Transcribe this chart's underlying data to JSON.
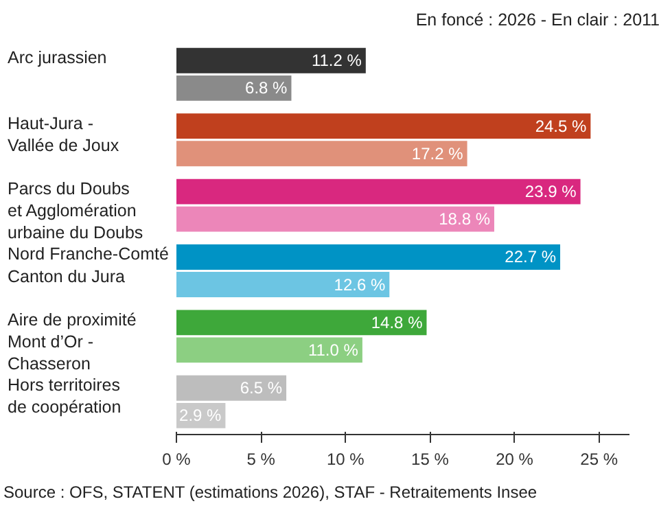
{
  "chart_data": {
    "type": "bar",
    "orientation": "horizontal",
    "title": "En foncé : 2026 - En clair : 2011",
    "categories": [
      "Arc jurassien",
      "Haut-Jura -\nVallée de Joux",
      "Parcs du Doubs\net Agglomération\nurbaine du Doubs",
      "Nord Franche-Comté\nCanton du Jura",
      "Aire de proximité\nMont d’Or -\nChasseron",
      "Hors territoires\nde coopération"
    ],
    "series": [
      {
        "colors": [
          "#333333",
          "#c0401e",
          "#d9287f",
          "#0093c5",
          "#3ea83a",
          "#bdbdbd"
        ],
        "values": [
          11.2,
          24.5,
          23.9,
          22.7,
          14.8,
          6.5
        ],
        "value_labels": [
          "11.2 %",
          "24.5 %",
          "23.9 %",
          "22.7 %",
          "14.8 %",
          "6.5 %"
        ]
      },
      {
        "colors": [
          "#8a8a8a",
          "#e0917a",
          "#ec86b9",
          "#6cc5e3",
          "#8ccf82",
          "#c9c9c9"
        ],
        "values": [
          6.8,
          17.2,
          18.8,
          12.6,
          11.0,
          2.9
        ],
        "value_labels": [
          "6.8 %",
          "17.2 %",
          "18.8 %",
          "12.6 %",
          "11.0 %",
          "2.9 %"
        ]
      }
    ],
    "xlim": [
      0,
      26.8
    ],
    "xticks": [
      {
        "value": 0,
        "label": "0 %"
      },
      {
        "value": 5,
        "label": "5 %"
      },
      {
        "value": 10,
        "label": "10 %"
      },
      {
        "value": 15,
        "label": "15 %"
      },
      {
        "value": 20,
        "label": "20 %"
      },
      {
        "value": 25,
        "label": "25 %"
      }
    ],
    "grid": false,
    "annotations": [
      "Source : OFS, STATENT (estimations 2026), STAF - Retraitements Insee"
    ]
  }
}
